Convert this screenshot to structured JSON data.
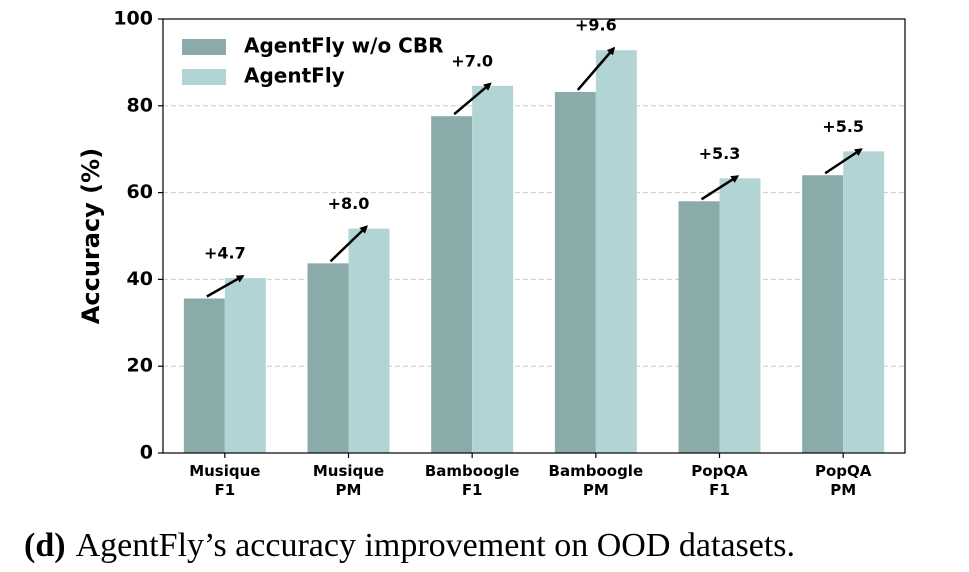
{
  "chart_data": {
    "type": "bar",
    "ylabel": "Accuracy (%)",
    "categories": [
      [
        "Musique",
        "F1"
      ],
      [
        "Musique",
        "PM"
      ],
      [
        "Bamboogle",
        "F1"
      ],
      [
        "Bamboogle",
        "PM"
      ],
      [
        "PopQA",
        "F1"
      ],
      [
        "PopQA",
        "PM"
      ]
    ],
    "series": [
      {
        "name": "AgentFly w/o CBR",
        "color": "#8aabaa",
        "values": [
          35.6,
          43.7,
          77.6,
          83.2,
          58.0,
          64.0
        ]
      },
      {
        "name": "AgentFly",
        "color": "#b3d4d5",
        "values": [
          40.3,
          51.7,
          84.6,
          92.8,
          63.3,
          69.5
        ]
      }
    ],
    "annotations": [
      "+4.7",
      "+8.0",
      "+7.0",
      "+9.6",
      "+5.3",
      "+5.5"
    ],
    "ylim": [
      0,
      100
    ],
    "yticks": [
      0,
      20,
      40,
      60,
      80,
      100
    ],
    "grid": true,
    "legend": "upper-left",
    "caption": {
      "label": "(d)",
      "text": "AgentFly’s accuracy improvement on OOD datasets."
    }
  }
}
